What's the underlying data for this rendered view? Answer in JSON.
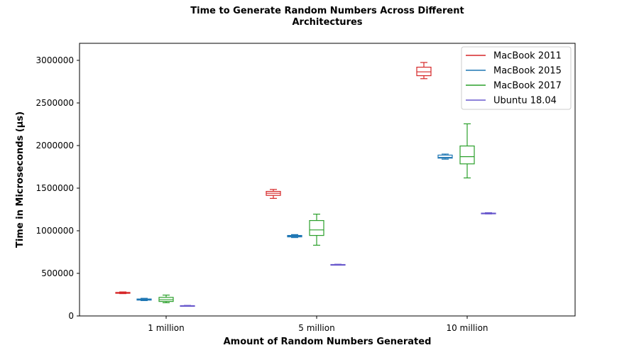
{
  "chart_data": {
    "type": "box",
    "title_lines": [
      "Time to Generate Random Numbers Across Different",
      "Architectures"
    ],
    "xlabel": "Amount of Random Numbers Generated",
    "ylabel": "Time in Microseconds (μs)",
    "categories": [
      "1 million",
      "5 million",
      "10 million"
    ],
    "ylim": [
      0,
      3200000
    ],
    "yticks": [
      {
        "value": 0,
        "label": "0"
      },
      {
        "value": 500000,
        "label": "500000"
      },
      {
        "value": 1000000,
        "label": "1000000"
      },
      {
        "value": 1500000,
        "label": "1500000"
      },
      {
        "value": 2000000,
        "label": "2000000"
      },
      {
        "value": 2500000,
        "label": "2500000"
      },
      {
        "value": 3000000,
        "label": "3000000"
      }
    ],
    "legend_position": "top-right",
    "grid": false,
    "series": [
      {
        "name": "MacBook 2011",
        "color": "#d62728",
        "boxes": [
          {
            "whislo": 262000,
            "q1": 266000,
            "med": 270000,
            "q3": 276000,
            "whishi": 282000
          },
          {
            "whislo": 1380000,
            "q1": 1415000,
            "med": 1440000,
            "q3": 1462000,
            "whishi": 1485000
          },
          {
            "whislo": 2785000,
            "q1": 2820000,
            "med": 2865000,
            "q3": 2920000,
            "whishi": 2975000
          }
        ]
      },
      {
        "name": "MacBook 2015",
        "color": "#1f77b4",
        "boxes": [
          {
            "whislo": 180000,
            "q1": 186000,
            "med": 192000,
            "q3": 199000,
            "whishi": 207000
          },
          {
            "whislo": 920000,
            "q1": 928000,
            "med": 937000,
            "q3": 945000,
            "whishi": 955000
          },
          {
            "whislo": 1840000,
            "q1": 1852000,
            "med": 1862000,
            "q3": 1888000,
            "whishi": 1900000
          }
        ]
      },
      {
        "name": "MacBook 2017",
        "color": "#2ca02c",
        "boxes": [
          {
            "whislo": 155000,
            "q1": 170000,
            "med": 190000,
            "q3": 218000,
            "whishi": 245000
          },
          {
            "whislo": 830000,
            "q1": 945000,
            "med": 1010000,
            "q3": 1120000,
            "whishi": 1195000
          },
          {
            "whislo": 1620000,
            "q1": 1785000,
            "med": 1870000,
            "q3": 1995000,
            "whishi": 2255000
          }
        ]
      },
      {
        "name": "Ubuntu 18.04",
        "color": "#6a5acd",
        "boxes": [
          {
            "whislo": 114000,
            "q1": 116000,
            "med": 118000,
            "q3": 121000,
            "whishi": 124000
          },
          {
            "whislo": 597000,
            "q1": 600000,
            "med": 602000,
            "q3": 604000,
            "whishi": 607000
          },
          {
            "whislo": 1197000,
            "q1": 1201000,
            "med": 1204000,
            "q3": 1207000,
            "whishi": 1212000
          }
        ]
      }
    ]
  }
}
